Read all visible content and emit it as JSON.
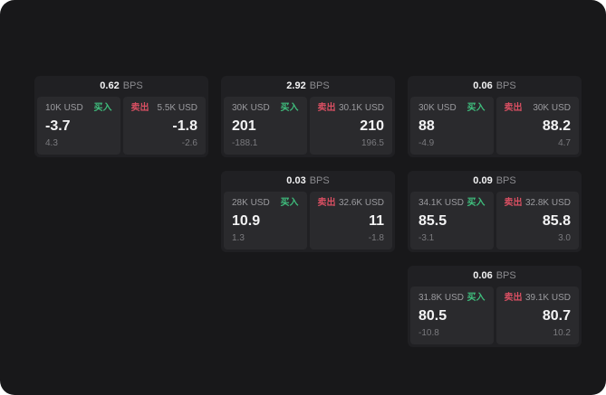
{
  "labels": {
    "bps_unit": "BPS",
    "buy": "买入",
    "sell": "卖出"
  },
  "colors": {
    "outer_bg": "#ffffff",
    "page_bg": "#18181a",
    "card_bg": "#202023",
    "panel_bg": "#2a2a2d",
    "buy_green": "#3fbe7d",
    "sell_red": "#d84f62",
    "label_gray": "#9b9b9f",
    "value_white": "#f3f3f4",
    "muted_gray": "#7a7a7e",
    "bps_unit_gray": "#8b8b8f"
  },
  "cards": [
    {
      "bps": "0.62",
      "buy": {
        "amount": "10K USD",
        "price": "-3.7",
        "change": "4.3"
      },
      "sell": {
        "amount": "5.5K USD",
        "price": "-1.8",
        "change": "-2.6"
      }
    },
    {
      "bps": "2.92",
      "buy": {
        "amount": "30K USD",
        "price": "201",
        "change": "-188.1"
      },
      "sell": {
        "amount": "30.1K USD",
        "price": "210",
        "change": "196.5"
      }
    },
    {
      "bps": "0.06",
      "buy": {
        "amount": "30K USD",
        "price": "88",
        "change": "-4.9"
      },
      "sell": {
        "amount": "30K USD",
        "price": "88.2",
        "change": "4.7"
      }
    },
    {
      "bps": "0.03",
      "buy": {
        "amount": "28K USD",
        "price": "10.9",
        "change": "1.3"
      },
      "sell": {
        "amount": "32.6K USD",
        "price": "11",
        "change": "-1.8"
      }
    },
    {
      "bps": "0.09",
      "buy": {
        "amount": "34.1K USD",
        "price": "85.5",
        "change": "-3.1"
      },
      "sell": {
        "amount": "32.8K USD",
        "price": "85.8",
        "change": "3.0"
      }
    },
    {
      "bps": "0.06",
      "buy": {
        "amount": "31.8K USD",
        "price": "80.5",
        "change": "-10.8"
      },
      "sell": {
        "amount": "39.1K USD",
        "price": "80.7",
        "change": "10.2"
      }
    }
  ]
}
